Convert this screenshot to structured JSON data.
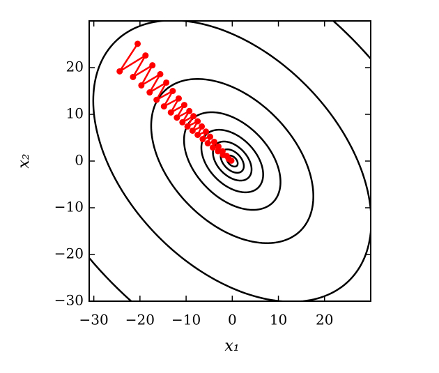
{
  "chart_data": {
    "type": "contour",
    "xlabel": "x₁",
    "ylabel": "x₂",
    "xlim": [
      -31,
      30
    ],
    "ylim": [
      -30,
      30
    ],
    "xticks": [
      {
        "value": -30,
        "label": "−30"
      },
      {
        "value": -20,
        "label": "−20"
      },
      {
        "value": -10,
        "label": "−10"
      },
      0,
      10,
      20
    ],
    "yticks": [
      {
        "value": -30,
        "label": "−30"
      },
      {
        "value": -20,
        "label": "−20"
      },
      {
        "value": -10,
        "label": "−10"
      },
      0,
      10,
      20
    ],
    "function": {
      "xx": 1.75,
      "xy": 1.5,
      "yy": 1.75
    },
    "levels": [
      2,
      9,
      25,
      64,
      156,
      441,
      1296,
      3400
    ],
    "contour_color": "#000000",
    "path": {
      "color": "#ff0000",
      "x": [
        -20.5,
        -24.4,
        -18.8,
        -21.5,
        -17.3,
        -19.7,
        -15.6,
        -17.9,
        -14.3,
        -16.4,
        -12.9,
        -14.8,
        -11.6,
        -13.3,
        -10.4,
        -12.0,
        -9.3,
        -10.8,
        -8.4,
        -9.7,
        -7.5,
        -8.6,
        -6.6,
        -7.5,
        -5.7,
        -6.4,
        -4.8,
        -5.3,
        -3.9,
        -4.2,
        -3.0,
        -3.1,
        -2.1,
        -2.0,
        -1.2,
        -0.8,
        -0.2
      ],
      "y": [
        25.1,
        19.2,
        22.6,
        18.0,
        20.5,
        16.2,
        18.6,
        14.7,
        16.8,
        13.1,
        15.0,
        11.7,
        13.4,
        10.4,
        12.0,
        9.3,
        10.7,
        8.3,
        9.6,
        7.4,
        8.5,
        6.5,
        7.4,
        5.6,
        6.3,
        4.7,
        5.2,
        3.8,
        4.1,
        2.9,
        3.1,
        2.1,
        2.1,
        1.3,
        1.1,
        0.5,
        0.1
      ]
    }
  }
}
